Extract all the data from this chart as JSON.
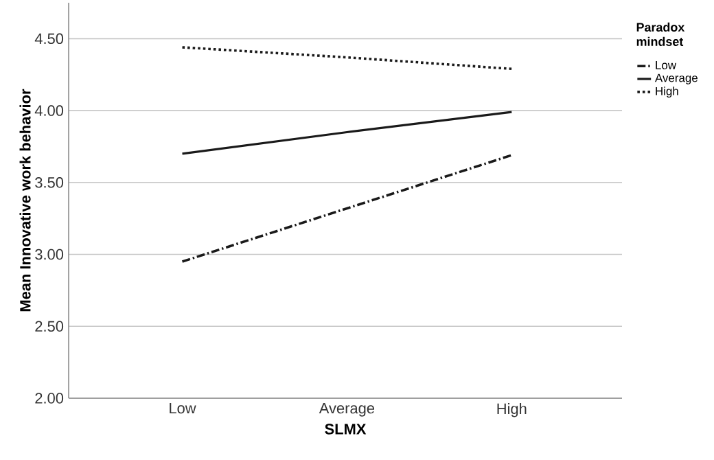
{
  "chart_data": {
    "type": "line",
    "xlabel": "SLMX",
    "ylabel": "Mean Innovative work behavior",
    "legend_title": "Paradox mindset",
    "categories": [
      "Low",
      "Average",
      "High"
    ],
    "series": [
      {
        "name": "Low",
        "color": "#1a1a1a",
        "line_style": "dashdot",
        "values": [
          2.95,
          3.32,
          3.69
        ]
      },
      {
        "name": "Average",
        "color": "#1a1a1a",
        "line_style": "solid",
        "values": [
          3.7,
          3.85,
          3.99
        ]
      },
      {
        "name": "High",
        "color": "#1a1a1a",
        "line_style": "dotted",
        "values": [
          4.44,
          4.37,
          4.29
        ]
      }
    ],
    "ylim": [
      2,
      4.75
    ],
    "yticks": [
      {
        "value": 2,
        "label": "2.00"
      },
      {
        "value": 2.5,
        "label": "2.50"
      },
      {
        "value": 3,
        "label": "3.00"
      },
      {
        "value": 3.5,
        "label": "3.50"
      },
      {
        "value": 4,
        "label": "4.00"
      },
      {
        "value": 4.5,
        "label": "4.50"
      }
    ],
    "grid": "y",
    "legend": "top right"
  }
}
